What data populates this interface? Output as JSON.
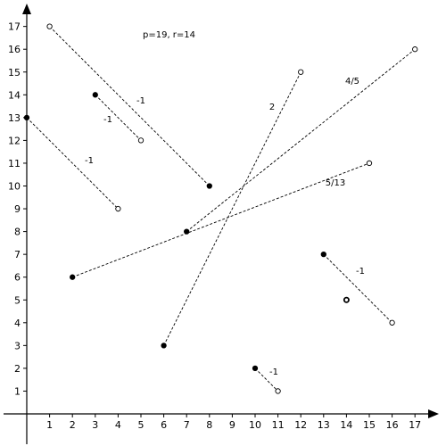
{
  "header": "p=19, r=14",
  "chart_data": {
    "type": "scatter",
    "xlim": [
      0,
      17
    ],
    "ylim": [
      0,
      17
    ],
    "x_ticks": [
      "1",
      "2",
      "3",
      "4",
      "5",
      "6",
      "7",
      "8",
      "9",
      "10",
      "11",
      "12",
      "13",
      "14",
      "15",
      "16",
      "17"
    ],
    "y_ticks": [
      "1",
      "2",
      "3",
      "4",
      "5",
      "6",
      "7",
      "8",
      "9",
      "10",
      "11",
      "12",
      "13",
      "14",
      "15",
      "16",
      "17"
    ],
    "segments": [
      {
        "filled": [
          0,
          13
        ],
        "open": [
          4,
          9
        ],
        "label": "-1"
      },
      {
        "filled": [
          3,
          14
        ],
        "open": [
          5,
          12
        ],
        "label": "-1"
      },
      {
        "filled": [
          8,
          10
        ],
        "open": [
          1,
          17
        ],
        "label": "-1"
      },
      {
        "filled": [
          6,
          3
        ],
        "open": [
          12,
          15
        ],
        "label": "2"
      },
      {
        "filled": [
          7,
          8
        ],
        "open": [
          17,
          16
        ],
        "label": "4/5"
      },
      {
        "filled": [
          2,
          6
        ],
        "open": [
          15,
          11
        ],
        "label": "5/13"
      },
      {
        "filled": [
          13,
          7
        ],
        "open": [
          16,
          4
        ],
        "label": "-1"
      },
      {
        "filled": [
          10,
          2
        ],
        "open": [
          11,
          1
        ],
        "label": "-1"
      }
    ],
    "lone_point": [
      14,
      5
    ]
  }
}
